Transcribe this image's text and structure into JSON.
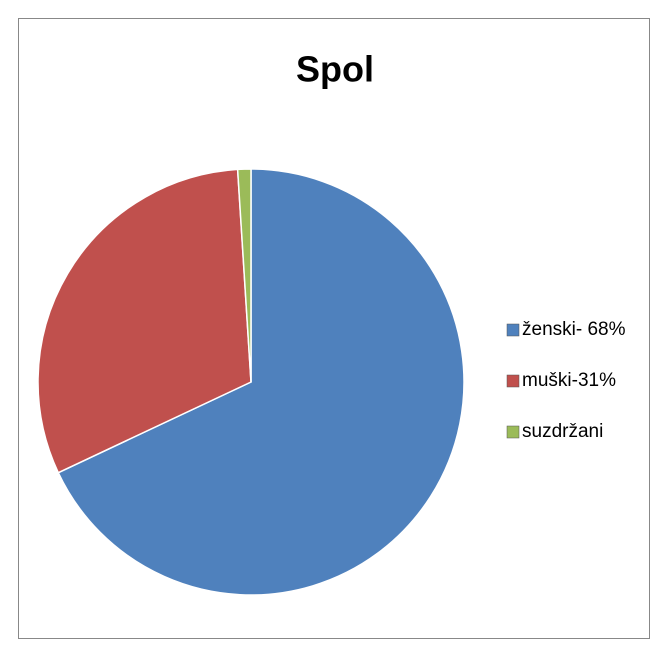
{
  "chart_data": {
    "type": "pie",
    "title": "Spol",
    "categories": [
      "ženski- 68%",
      "muški-31%",
      "suzdržani"
    ],
    "values": [
      68,
      31,
      1
    ],
    "colors": [
      "#4f81bd",
      "#c0504d",
      "#9bbb59"
    ],
    "legend": "right"
  }
}
